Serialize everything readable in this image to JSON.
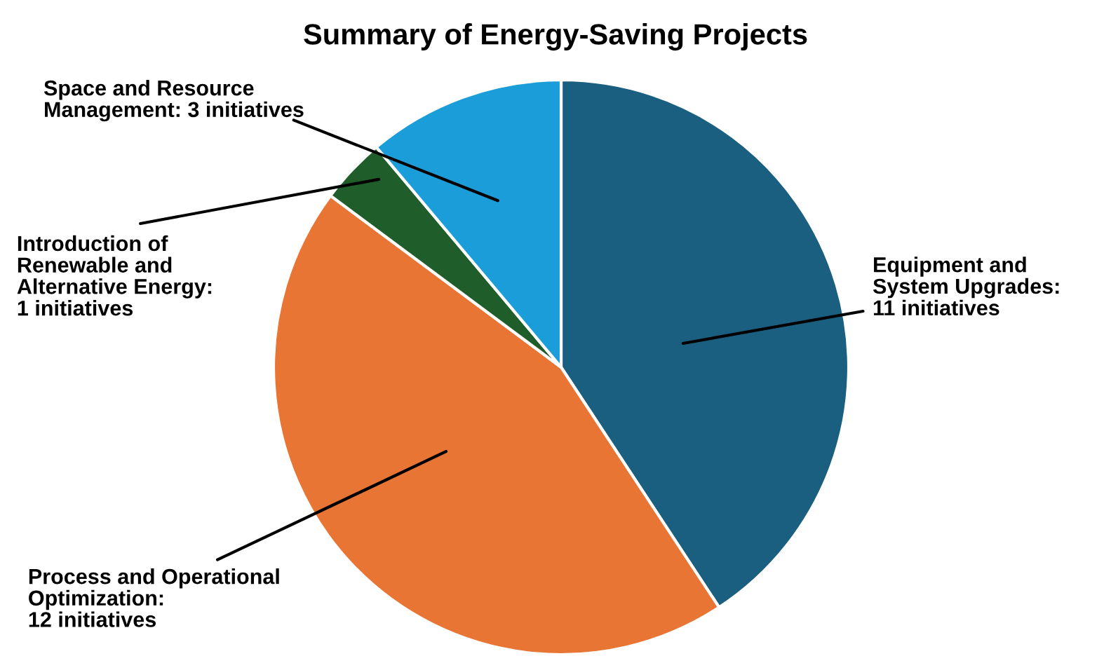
{
  "chart_data": {
    "type": "pie",
    "title": "Summary of Energy-Saving Projects",
    "categories": [
      "Equipment and\nSystem Upgrades:\n11 initiatives",
      "Process and Operational\nOptimization:\n12 initiatives",
      "Introduction of\nRenewable and\nAlternative Energy:\n1 initiatives",
      "Space and Resource\nManagement: 3 initiatives"
    ],
    "values": [
      11,
      12,
      1,
      3
    ],
    "colors": [
      "#1a5e80",
      "#e87533",
      "#1f5e2a",
      "#1b9dd9"
    ]
  }
}
